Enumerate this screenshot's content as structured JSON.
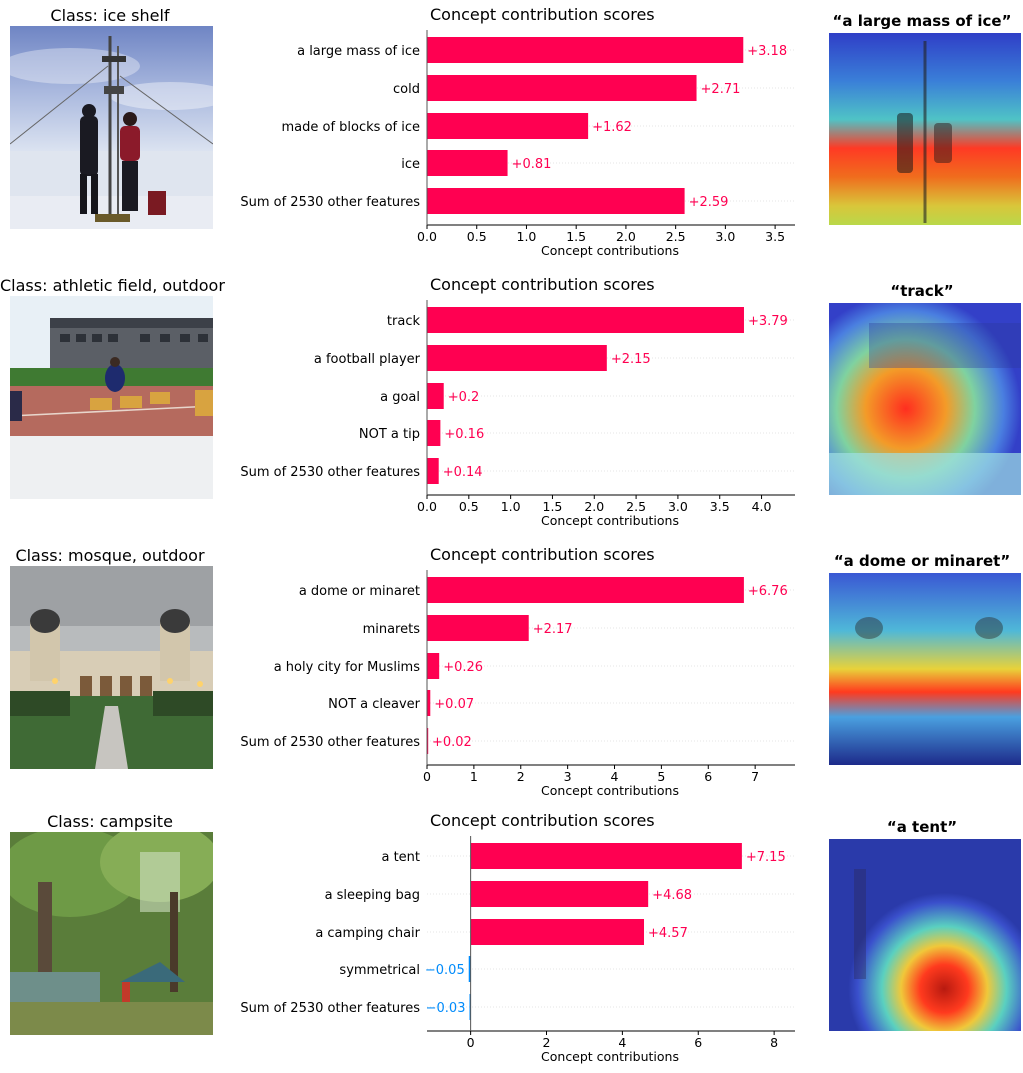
{
  "colors": {
    "positive": "#ff0051",
    "negative": "#008bfb"
  },
  "panels": [
    {
      "class_title": "Class: ice shelf",
      "heatmap_title": "“a large mass of ice”",
      "scene": "ice",
      "heat": "ice",
      "chart_data": {
        "type": "bar",
        "title": "Concept contribution scores",
        "xlabel": "Concept contributions",
        "categories": [
          "a large mass of ice",
          "cold",
          "made of blocks of ice",
          "ice",
          "Sum of 2530 other features"
        ],
        "values": [
          3.18,
          2.71,
          1.62,
          0.81,
          2.59
        ],
        "value_labels": [
          "+3.18",
          "+2.71",
          "+1.62",
          "+0.81",
          "+2.59"
        ],
        "xlim": [
          0,
          3.7
        ],
        "xticks": [
          0,
          0.5,
          1,
          1.5,
          2,
          2.5,
          3,
          3.5
        ],
        "xtick_labels": [
          "0.0",
          "0.5",
          "1.0",
          "1.5",
          "2.0",
          "2.5",
          "3.0",
          "3.5"
        ]
      }
    },
    {
      "class_title": "Class: athletic field, outdoor",
      "heatmap_title": "“track”",
      "scene": "field",
      "heat": "field",
      "chart_data": {
        "type": "bar",
        "title": "Concept contribution scores",
        "xlabel": "Concept contributions",
        "categories": [
          "track",
          "a football player",
          "a goal",
          "NOT a tip",
          "Sum of 2530 other features"
        ],
        "values": [
          3.79,
          2.15,
          0.2,
          0.16,
          0.14
        ],
        "value_labels": [
          "+3.79",
          "+2.15",
          "+0.2",
          "+0.16",
          "+0.14"
        ],
        "xlim": [
          0,
          4.4
        ],
        "xticks": [
          0,
          0.5,
          1,
          1.5,
          2,
          2.5,
          3,
          3.5,
          4
        ],
        "xtick_labels": [
          "0.0",
          "0.5",
          "1.0",
          "1.5",
          "2.0",
          "2.5",
          "3.0",
          "3.5",
          "4.0"
        ]
      }
    },
    {
      "class_title": "Class: mosque, outdoor",
      "heatmap_title": "“a dome or minaret”",
      "scene": "mosque",
      "heat": "mosque",
      "chart_data": {
        "type": "bar",
        "title": "Concept contribution scores",
        "xlabel": "Concept contributions",
        "categories": [
          "a dome or minaret",
          "minarets",
          "a holy city for Muslims",
          "NOT a cleaver",
          "Sum of 2530 other features"
        ],
        "values": [
          6.76,
          2.17,
          0.26,
          0.07,
          0.02
        ],
        "value_labels": [
          "+6.76",
          "+2.17",
          "+0.26",
          "+0.07",
          "+0.02"
        ],
        "xlim": [
          0,
          7.85
        ],
        "xticks": [
          0,
          1,
          2,
          3,
          4,
          5,
          6,
          7
        ],
        "xtick_labels": [
          "0",
          "1",
          "2",
          "3",
          "4",
          "5",
          "6",
          "7"
        ]
      }
    },
    {
      "class_title": "Class: campsite",
      "heatmap_title": "“a tent”",
      "scene": "camp",
      "heat": "camp",
      "chart_data": {
        "type": "bar",
        "title": "Concept contribution scores",
        "xlabel": "Concept contributions",
        "categories": [
          "a tent",
          "a sleeping bag",
          "a camping chair",
          "symmetrical",
          "Sum of 2530 other features"
        ],
        "values": [
          7.15,
          4.68,
          4.57,
          -0.05,
          -0.03
        ],
        "value_labels": [
          "+7.15",
          "+4.68",
          "+4.57",
          "−0.05",
          "−0.03"
        ],
        "xlim": [
          -1.15,
          8.55
        ],
        "xticks": [
          0,
          2,
          4,
          6,
          8
        ],
        "xtick_labels": [
          "0",
          "2",
          "4",
          "6",
          "8"
        ]
      }
    }
  ]
}
